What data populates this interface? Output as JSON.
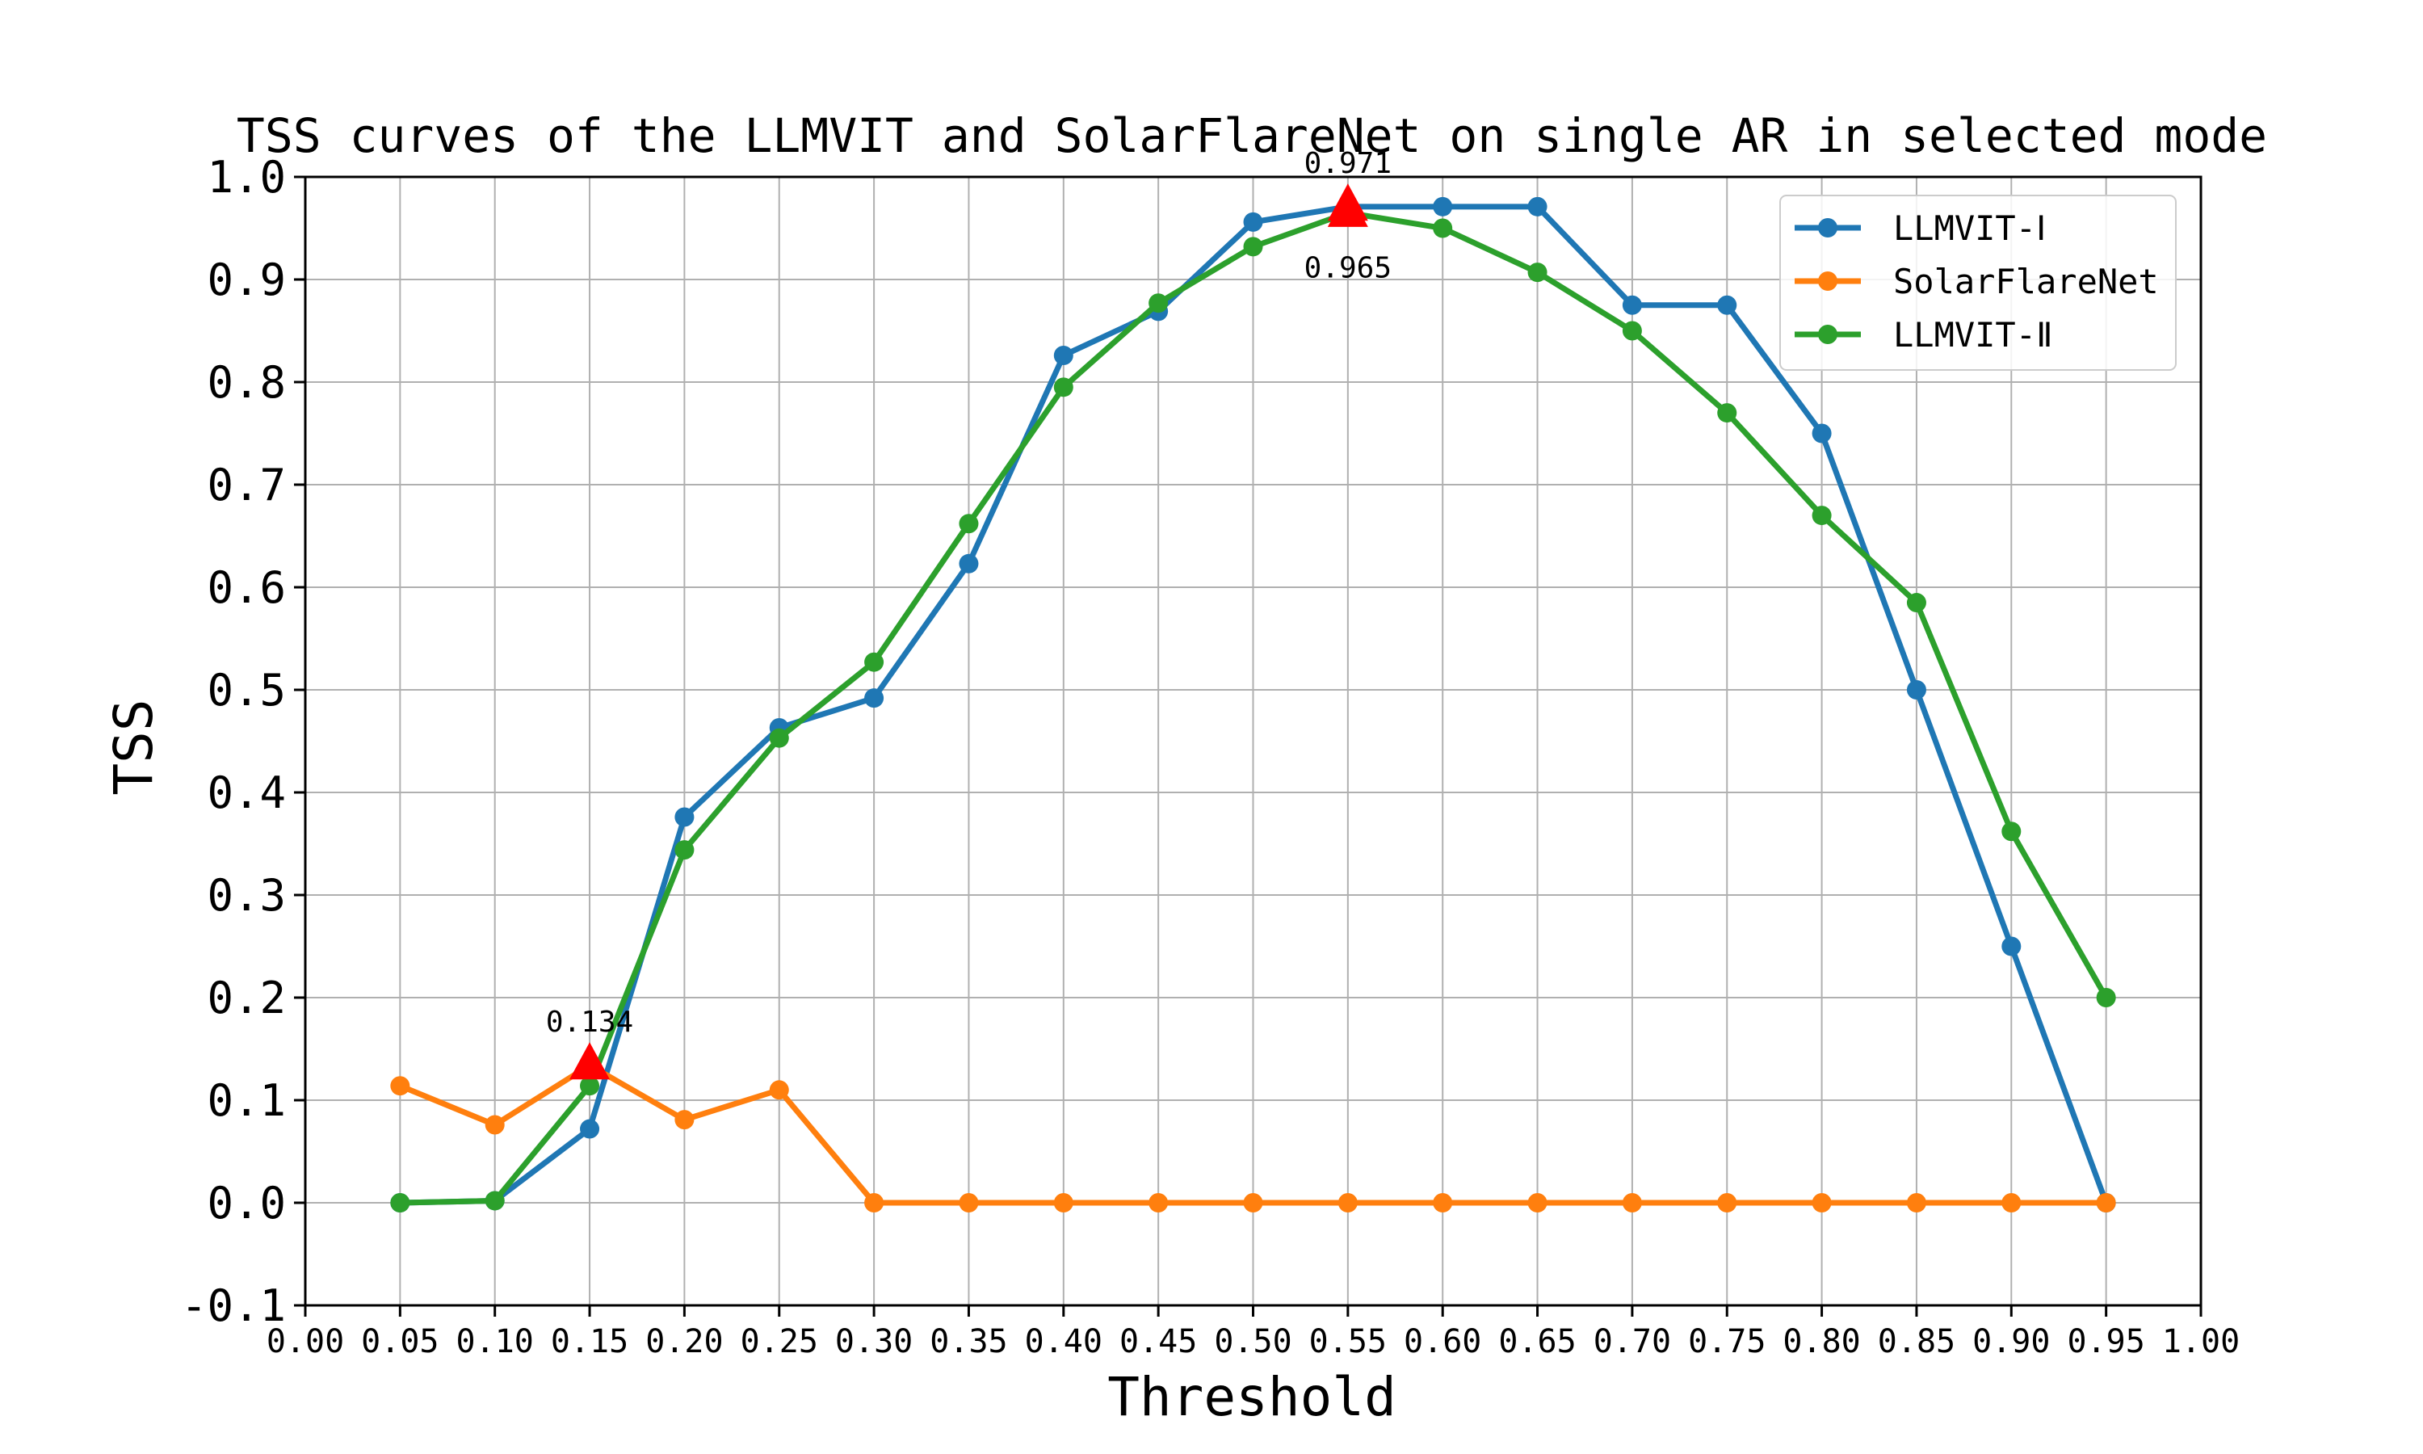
{
  "chart_data": {
    "type": "line",
    "title": "TSS curves of the LLMVIT and SolarFlareNet on single AR in selected mode",
    "xlabel": "Threshold",
    "ylabel": "TSS",
    "xlim": [
      0.0,
      1.0
    ],
    "ylim": [
      -0.1,
      1.0
    ],
    "grid": true,
    "legend_position": "top-right",
    "x_ticks": [
      "0.00",
      "0.05",
      "0.10",
      "0.15",
      "0.20",
      "0.25",
      "0.30",
      "0.35",
      "0.40",
      "0.45",
      "0.50",
      "0.55",
      "0.60",
      "0.65",
      "0.70",
      "0.75",
      "0.80",
      "0.85",
      "0.90",
      "0.95",
      "1.00"
    ],
    "y_ticks": [
      "-0.1",
      "0.0",
      "0.1",
      "0.2",
      "0.3",
      "0.4",
      "0.5",
      "0.6",
      "0.7",
      "0.8",
      "0.9",
      "1.0"
    ],
    "x": [
      0.05,
      0.1,
      0.15,
      0.2,
      0.25,
      0.3,
      0.35,
      0.4,
      0.45,
      0.5,
      0.55,
      0.6,
      0.65,
      0.7,
      0.75,
      0.8,
      0.85,
      0.9,
      0.95
    ],
    "series": [
      {
        "name": "LLMVIT-Ⅰ",
        "color": "#1f77b4",
        "values": [
          0.0,
          0.002,
          0.072,
          0.376,
          0.463,
          0.492,
          0.623,
          0.826,
          0.869,
          0.956,
          0.971,
          0.971,
          0.971,
          0.875,
          0.875,
          0.75,
          0.5,
          0.25,
          0.0
        ]
      },
      {
        "name": "SolarFlareNet",
        "color": "#ff7f0e",
        "values": [
          0.114,
          0.076,
          0.134,
          0.081,
          0.11,
          0.0,
          0.0,
          0.0,
          0.0,
          0.0,
          0.0,
          0.0,
          0.0,
          0.0,
          0.0,
          0.0,
          0.0,
          0.0,
          0.0
        ]
      },
      {
        "name": "LLMVIT-Ⅱ",
        "color": "#2ca02c",
        "values": [
          0.0,
          0.002,
          0.114,
          0.344,
          0.453,
          0.527,
          0.662,
          0.795,
          0.877,
          0.932,
          0.965,
          0.95,
          0.907,
          0.85,
          0.77,
          0.67,
          0.585,
          0.362,
          0.2
        ]
      }
    ],
    "annotations": [
      {
        "x": 0.15,
        "y": 0.134,
        "label": "0.134",
        "marker_color": "#ff0000",
        "label_position": "above"
      },
      {
        "x": 0.55,
        "y": 0.971,
        "label": "0.971",
        "marker_color": "#ff0000",
        "label_position": "above"
      },
      {
        "x": 0.55,
        "y": 0.965,
        "label": "0.965",
        "marker_color": "#ff0000",
        "label_position": "below"
      }
    ]
  }
}
